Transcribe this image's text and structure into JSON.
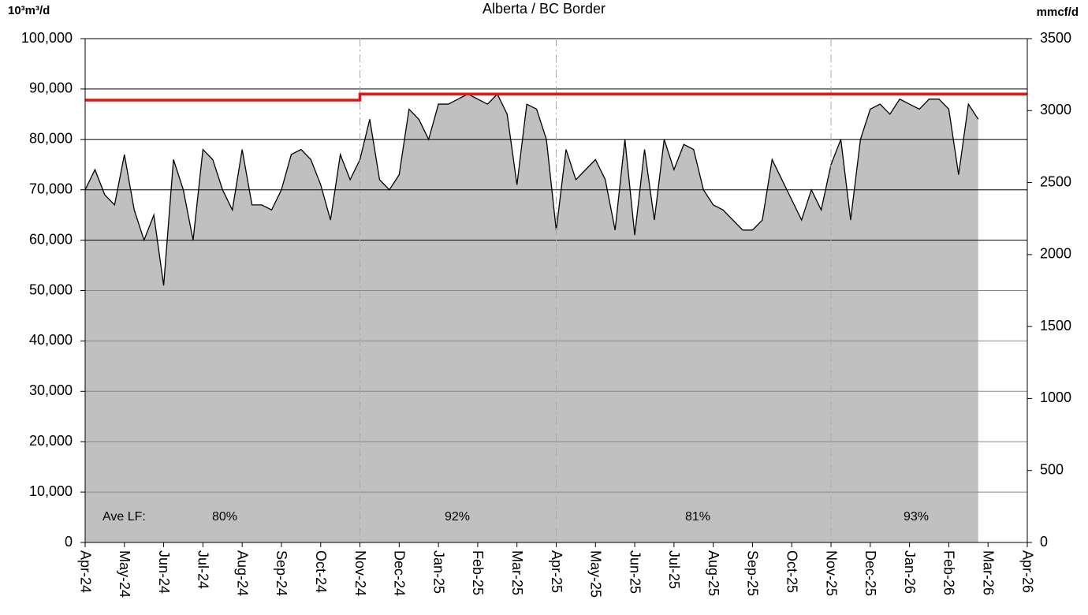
{
  "chart_data": {
    "type": "area",
    "title": "Alberta / BC Border",
    "ylabel": "10³m³/d",
    "y2label": "mmcf/d",
    "categories": [
      "Apr-24",
      null,
      null,
      null,
      "May-24",
      null,
      null,
      null,
      "Jun-24",
      null,
      null,
      null,
      "Jul-24",
      null,
      null,
      null,
      "Aug-24",
      null,
      null,
      null,
      "Sep-24",
      null,
      null,
      null,
      "Oct-24",
      null,
      null,
      null,
      "Nov-24",
      null,
      null,
      null,
      "Dec-24",
      null,
      null,
      null,
      "Jan-25",
      null,
      null,
      null,
      "Feb-25",
      null,
      null,
      null,
      "Mar-25",
      null,
      null,
      null,
      "Apr-25",
      null,
      null,
      null,
      "May-25",
      null,
      null,
      null,
      "Jun-25",
      null,
      null,
      null,
      "Jul-25",
      null,
      null,
      null,
      "Aug-25",
      null,
      null,
      null,
      "Sep-25",
      null,
      null,
      null,
      "Oct-25",
      null,
      null,
      null,
      "Nov-25",
      null,
      null,
      null,
      "Dec-25",
      null,
      null,
      null,
      "Jan-26",
      null,
      null,
      null,
      "Feb-26",
      null,
      null,
      null,
      "Mar-26",
      null,
      null,
      null,
      "Apr-26"
    ],
    "series": [
      {
        "color": "#c0c0c0",
        "values": [
          70000,
          74000,
          69000,
          67000,
          77000,
          66000,
          60000,
          65000,
          51000,
          76000,
          70000,
          60000,
          78000,
          76000,
          70000,
          66000,
          78000,
          67000,
          67000,
          66000,
          70000,
          77000,
          78000,
          76000,
          71000,
          64000,
          77000,
          72000,
          76000,
          84000,
          72000,
          70000,
          73000,
          86000,
          84000,
          80000,
          87000,
          87000,
          88000,
          89000,
          88000,
          87000,
          89000,
          85000,
          71000,
          87000,
          86000,
          80000,
          62000,
          78000,
          72000,
          74000,
          76000,
          72000,
          62000,
          80000,
          61000,
          78000,
          64000,
          80000,
          74000,
          79000,
          78000,
          70000,
          67000,
          66000,
          64000,
          62000,
          62000,
          64000,
          76000,
          72000,
          68000,
          64000,
          70000,
          66000,
          75000,
          80000,
          64000,
          80000,
          86000,
          87000,
          85000,
          88000,
          87000,
          86000,
          88000,
          88000,
          86000,
          73000,
          87000,
          84000,
          null,
          null,
          null,
          null,
          null
        ]
      },
      {
        "color": "#ee1111",
        "values": [
          87800,
          87800,
          87800,
          87800,
          87800,
          87800,
          87800,
          87800,
          87800,
          87800,
          87800,
          87800,
          87800,
          87800,
          87800,
          87800,
          87800,
          87800,
          87800,
          87800,
          87800,
          87800,
          87800,
          87800,
          87800,
          87800,
          87800,
          87800,
          89000,
          89000,
          89000,
          89000,
          89000,
          89000,
          89000,
          89000,
          89000,
          89000,
          89000,
          89000,
          89000,
          89000,
          89000,
          89000,
          89000,
          89000,
          89000,
          89000,
          89000,
          89000,
          89000,
          89000,
          89000,
          89000,
          89000,
          89000,
          89000,
          89000,
          89000,
          89000,
          89000,
          89000,
          89000,
          89000,
          89000,
          89000,
          89000,
          89000,
          89000,
          89000,
          89000,
          89000,
          89000,
          89000,
          89000,
          89000,
          89000,
          89000,
          89000,
          89000,
          89000,
          89000,
          89000,
          89000,
          89000,
          89000,
          89000,
          89000,
          89000,
          89000,
          89000,
          89000,
          89000,
          89000,
          89000,
          89000,
          89000
        ]
      }
    ],
    "ylim": [
      0,
      100000
    ],
    "yticks": [
      0,
      {
        "value": 10000,
        "label": "10,000"
      },
      {
        "value": 20000,
        "label": "20,000"
      },
      {
        "value": 30000,
        "label": "30,000"
      },
      {
        "value": 40000,
        "label": "40,000"
      },
      {
        "value": 50000,
        "label": "50,000"
      },
      {
        "value": 60000,
        "label": "60,000"
      },
      {
        "value": 70000,
        "label": "70,000"
      },
      {
        "value": 80000,
        "label": "80,000"
      },
      {
        "value": 90000,
        "label": "90,000"
      },
      {
        "value": 100000,
        "label": "100,000"
      }
    ],
    "y2lim": [
      0,
      3500
    ],
    "y2ticks": [
      0,
      500,
      1000,
      1500,
      2000,
      2500,
      3000,
      3500
    ],
    "annotations": [
      "Ave LF:",
      "80%",
      "92%",
      "81%",
      "93%"
    ],
    "grid": true
  }
}
